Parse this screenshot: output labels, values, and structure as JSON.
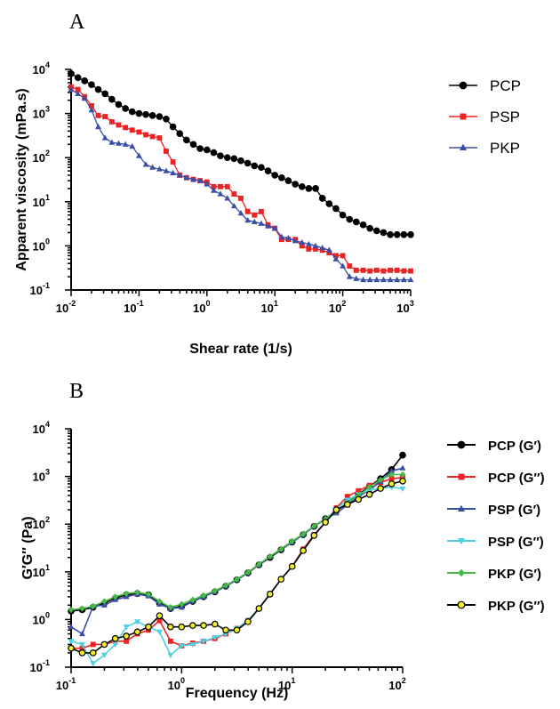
{
  "panels": [
    {
      "letter": "A"
    },
    {
      "letter": "B"
    }
  ],
  "chart_data": [
    {
      "type": "line",
      "xscale": "log",
      "yscale": "log",
      "xlim": [
        0.01,
        1000
      ],
      "ylim": [
        0.1,
        10000
      ],
      "xlabel": "Shear rate (1/s)",
      "ylabel": "Apparent viscosity (mPa.s)",
      "xticks": [
        0.01,
        0.1,
        1,
        10,
        100,
        1000
      ],
      "xticklabels": [
        [
          "10",
          "-2"
        ],
        [
          "10",
          "-1"
        ],
        [
          "10",
          "0"
        ],
        [
          "10",
          "1"
        ],
        [
          "10",
          "2"
        ],
        [
          "10",
          "3"
        ]
      ],
      "yticks": [
        0.1,
        1,
        10,
        100,
        1000,
        10000
      ],
      "yticklabels": [
        [
          "10",
          "-1"
        ],
        [
          "10",
          "0"
        ],
        [
          "10",
          "1"
        ],
        [
          "10",
          "2"
        ],
        [
          "10",
          "3"
        ],
        [
          "10",
          "4"
        ]
      ],
      "legend_position": "top-right",
      "series": [
        {
          "name": "PCP",
          "color": "#000000",
          "marker": "circle",
          "x": [
            0.01,
            0.0126,
            0.0158,
            0.02,
            0.0251,
            0.0316,
            0.0398,
            0.0501,
            0.0631,
            0.0794,
            0.1,
            0.126,
            0.158,
            0.2,
            0.251,
            0.316,
            0.398,
            0.501,
            0.631,
            0.794,
            1,
            1.26,
            1.58,
            2,
            2.51,
            3.16,
            3.98,
            5.01,
            6.31,
            7.94,
            10,
            12.6,
            15.8,
            20,
            25.1,
            31.6,
            39.8,
            50.1,
            63.1,
            79.4,
            100,
            126,
            158,
            200,
            251,
            316,
            398,
            501,
            631,
            794,
            1000
          ],
          "y": [
            8000,
            6500,
            5500,
            4500,
            3500,
            2800,
            2100,
            1600,
            1300,
            1100,
            1000,
            950,
            900,
            850,
            750,
            500,
            350,
            250,
            200,
            160,
            150,
            130,
            110,
            100,
            95,
            85,
            75,
            65,
            60,
            50,
            40,
            35,
            30,
            25,
            22,
            20,
            20,
            12,
            9,
            7,
            5,
            4,
            3.5,
            3,
            2.5,
            2.2,
            2,
            1.8,
            1.8,
            1.8,
            1.8
          ]
        },
        {
          "name": "PSP",
          "color": "#ee2222",
          "marker": "square",
          "x": [
            0.01,
            0.0126,
            0.0158,
            0.02,
            0.0251,
            0.0316,
            0.0398,
            0.0501,
            0.0631,
            0.0794,
            0.1,
            0.126,
            0.158,
            0.2,
            0.251,
            0.316,
            0.398,
            0.501,
            0.631,
            0.794,
            1,
            1.26,
            1.58,
            2,
            2.51,
            3.16,
            3.98,
            5.01,
            6.31,
            7.94,
            10,
            12.6,
            15.8,
            20,
            25.1,
            31.6,
            39.8,
            50.1,
            63.1,
            79.4,
            100,
            126,
            158,
            200,
            251,
            316,
            398,
            501,
            631,
            794,
            1000
          ],
          "y": [
            4000,
            3500,
            2400,
            1500,
            900,
            850,
            650,
            550,
            480,
            420,
            380,
            330,
            300,
            280,
            140,
            80,
            40,
            35,
            32,
            30,
            28,
            22,
            22,
            22,
            15,
            12,
            6,
            5,
            6,
            3,
            2.5,
            1.4,
            1.4,
            1.4,
            1,
            0.85,
            0.85,
            0.8,
            0.7,
            0.6,
            0.6,
            0.35,
            0.28,
            0.28,
            0.27,
            0.28,
            0.27,
            0.28,
            0.28,
            0.27,
            0.27
          ]
        },
        {
          "name": "PKP",
          "color": "#3b4fa8",
          "marker": "triangle",
          "x": [
            0.01,
            0.0126,
            0.0158,
            0.02,
            0.0251,
            0.0316,
            0.0398,
            0.0501,
            0.0631,
            0.0794,
            0.1,
            0.126,
            0.158,
            0.2,
            0.251,
            0.316,
            0.398,
            0.501,
            0.631,
            0.794,
            1,
            1.26,
            1.58,
            2,
            2.51,
            3.16,
            3.98,
            5.01,
            6.31,
            7.94,
            10,
            12.6,
            15.8,
            20,
            25.1,
            31.6,
            39.8,
            50.1,
            63.1,
            79.4,
            100,
            126,
            158,
            200,
            251,
            316,
            398,
            501,
            631,
            794,
            1000
          ],
          "y": [
            3500,
            2800,
            2200,
            1200,
            500,
            280,
            220,
            210,
            200,
            180,
            110,
            70,
            60,
            55,
            50,
            45,
            40,
            35,
            32,
            30,
            25,
            18,
            15,
            12,
            8,
            5.5,
            3.8,
            3.5,
            3.2,
            2.8,
            2.5,
            1.6,
            1.5,
            1.3,
            1.2,
            1.1,
            1,
            0.9,
            0.8,
            0.5,
            0.35,
            0.2,
            0.18,
            0.17,
            0.17,
            0.17,
            0.17,
            0.17,
            0.17,
            0.17,
            0.17
          ]
        }
      ]
    },
    {
      "type": "line",
      "xscale": "log",
      "yscale": "log",
      "xlim": [
        0.1,
        100
      ],
      "ylim": [
        0.1,
        10000
      ],
      "xlabel": "Frequency (Hz)",
      "ylabel": "G′G″ (Pa)",
      "xticks": [
        0.1,
        1,
        10,
        100
      ],
      "xticklabels": [
        [
          "10",
          "-1"
        ],
        [
          "10",
          "0"
        ],
        [
          "10",
          "1"
        ],
        [
          "10",
          "2"
        ]
      ],
      "yticks": [
        0.1,
        1,
        10,
        100,
        1000,
        10000
      ],
      "yticklabels": [
        [
          "10",
          "-1"
        ],
        [
          "10",
          "0"
        ],
        [
          "10",
          "1"
        ],
        [
          "10",
          "2"
        ],
        [
          "10",
          "3"
        ],
        [
          "10",
          "4"
        ]
      ],
      "legend_position": "right",
      "series": [
        {
          "name": "PCP (G′)",
          "color": "#000000",
          "marker": "circle",
          "fill": "#000000",
          "x": [
            0.1,
            0.126,
            0.158,
            0.2,
            0.251,
            0.316,
            0.398,
            0.501,
            0.631,
            0.794,
            1,
            1.26,
            1.58,
            2,
            2.51,
            3.16,
            3.98,
            5.01,
            6.31,
            7.94,
            10,
            12.6,
            15.8,
            20,
            25.1,
            31.6,
            39.8,
            50.1,
            63.1,
            79.4,
            100
          ],
          "y": [
            1.5,
            1.6,
            1.8,
            2.2,
            2.8,
            3.3,
            3.5,
            3.3,
            2.2,
            1.7,
            1.9,
            2.4,
            3.0,
            3.8,
            5.0,
            6.8,
            9.5,
            14,
            20,
            29,
            42,
            60,
            90,
            130,
            190,
            280,
            420,
            620,
            900,
            1400,
            2800
          ]
        },
        {
          "name": "PCP (G″)",
          "color": "#ee2222",
          "marker": "square",
          "fill": "#ee2222",
          "x": [
            0.1,
            0.126,
            0.158,
            0.2,
            0.251,
            0.316,
            0.398,
            0.501,
            0.631,
            0.794,
            1,
            1.26,
            1.58,
            2,
            2.51,
            3.16,
            3.98,
            5.01,
            6.31,
            7.94,
            10,
            12.6,
            15.8,
            20,
            25.1,
            31.6,
            39.8,
            50.1,
            63.1,
            79.4,
            100
          ],
          "y": [
            0.25,
            0.25,
            0.3,
            0.3,
            0.35,
            0.35,
            0.5,
            0.6,
            0.95,
            0.35,
            0.28,
            0.32,
            0.35,
            0.4,
            0.5,
            0.65,
            0.95,
            1.7,
            3.5,
            7,
            13,
            30,
            60,
            110,
            220,
            380,
            500,
            650,
            750,
            900,
            950
          ]
        },
        {
          "name": "PSP (G′)",
          "color": "#3b4fa8",
          "marker": "triangle",
          "fill": "#3b4fa8",
          "x": [
            0.1,
            0.126,
            0.158,
            0.2,
            0.251,
            0.316,
            0.398,
            0.501,
            0.631,
            0.794,
            1,
            1.26,
            1.58,
            2,
            2.51,
            3.16,
            3.98,
            5.01,
            6.31,
            7.94,
            10,
            12.6,
            15.8,
            20,
            25.1,
            31.6,
            39.8,
            50.1,
            63.1,
            79.4,
            100
          ],
          "y": [
            0.7,
            0.5,
            1.9,
            2.0,
            2.6,
            3.0,
            3.4,
            3.1,
            2.1,
            1.7,
            1.8,
            2.4,
            3.0,
            3.8,
            5.0,
            6.8,
            9.5,
            14,
            21,
            30,
            42,
            60,
            90,
            130,
            170,
            250,
            380,
            520,
            780,
            1300,
            1500
          ]
        },
        {
          "name": "PSP (G″)",
          "color": "#4dd0e1",
          "marker": "triangle-down",
          "fill": "#4dd0e1",
          "x": [
            0.1,
            0.126,
            0.158,
            0.2,
            0.251,
            0.316,
            0.398,
            0.501,
            0.631,
            0.794,
            1,
            1.26,
            1.58,
            2,
            2.51,
            3.16,
            3.98,
            5.01,
            6.31,
            7.94,
            10,
            12.6,
            15.8,
            20,
            25.1,
            31.6,
            39.8,
            50.1,
            63.1,
            79.4,
            100
          ],
          "y": [
            0.35,
            0.3,
            0.12,
            0.18,
            0.3,
            0.7,
            0.9,
            0.7,
            0.55,
            0.18,
            0.28,
            0.3,
            0.35,
            0.42,
            0.5,
            0.65,
            0.95,
            1.7,
            3.5,
            7,
            13,
            28,
            58,
            110,
            210,
            320,
            420,
            520,
            560,
            600,
            550
          ]
        },
        {
          "name": "PKP (G′)",
          "color": "#44bb44",
          "marker": "diamond",
          "fill": "#44bb44",
          "x": [
            0.1,
            0.126,
            0.158,
            0.2,
            0.251,
            0.316,
            0.398,
            0.501,
            0.631,
            0.794,
            1,
            1.26,
            1.58,
            2,
            2.51,
            3.16,
            3.98,
            5.01,
            6.31,
            7.94,
            10,
            12.6,
            15.8,
            20,
            25.1,
            31.6,
            39.8,
            50.1,
            63.1,
            79.4,
            100
          ],
          "y": [
            1.6,
            1.7,
            1.9,
            2.4,
            3.0,
            3.5,
            3.7,
            3.4,
            2.4,
            1.8,
            2.1,
            2.6,
            3.2,
            4.0,
            5.2,
            7.0,
            9.8,
            14.5,
            21,
            30,
            44,
            62,
            92,
            130,
            190,
            280,
            400,
            600,
            850,
            1100,
            1100
          ]
        },
        {
          "name": "PKP (G″)",
          "color": "#000000",
          "marker": "circle",
          "fill": "#f2ee2a",
          "x": [
            0.1,
            0.126,
            0.158,
            0.2,
            0.251,
            0.316,
            0.398,
            0.501,
            0.631,
            0.794,
            1,
            1.26,
            1.58,
            2,
            2.51,
            3.16,
            3.98,
            5.01,
            6.31,
            7.94,
            10,
            12.6,
            15.8,
            20,
            25.1,
            31.6,
            39.8,
            50.1,
            63.1,
            79.4,
            100
          ],
          "y": [
            0.25,
            0.2,
            0.2,
            0.3,
            0.4,
            0.45,
            0.55,
            0.7,
            1.2,
            0.7,
            0.7,
            0.75,
            0.75,
            0.8,
            0.6,
            0.6,
            0.9,
            1.7,
            3.4,
            7,
            13,
            28,
            58,
            110,
            200,
            260,
            330,
            420,
            560,
            700,
            800
          ]
        }
      ]
    }
  ]
}
